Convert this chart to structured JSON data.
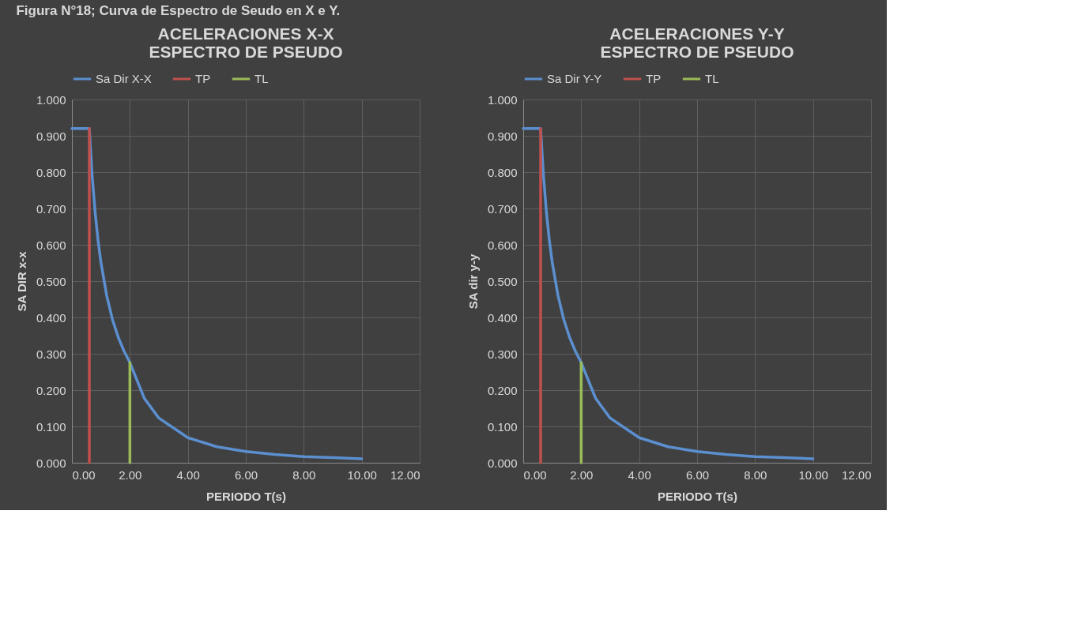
{
  "chart_data": [
    {
      "type": "line",
      "title": "ACELERACIONES X-X\nESPECTRO DE PSEUDO",
      "xlabel": "PERIODO T(s)",
      "ylabel": "SA DIR x-x",
      "annotations": [
        "Figura N°18; Curva de Espectro de Seudo en X e Y."
      ],
      "series": [
        {
          "name": "Sa Dir X-X",
          "color": "#5b8fd0",
          "x": [
            0,
            0.6,
            0.7,
            0.8,
            0.9,
            1.0,
            1.2,
            1.4,
            1.6,
            1.8,
            2.0,
            2.5,
            3.0,
            4.0,
            5.0,
            6.0,
            7.0,
            8.0,
            9.0,
            10.0
          ],
          "values": [
            0.92,
            0.92,
            0.789,
            0.69,
            0.613,
            0.552,
            0.46,
            0.394,
            0.345,
            0.307,
            0.276,
            0.177,
            0.123,
            0.069,
            0.044,
            0.031,
            0.023,
            0.017,
            0.014,
            0.011
          ]
        },
        {
          "name": "TP",
          "color": "#c0504d",
          "x": [
            0.6,
            0.6
          ],
          "values": [
            0,
            0.92
          ]
        },
        {
          "name": "TL",
          "color": "#9bbb59",
          "x": [
            2.0,
            2.0
          ],
          "values": [
            0,
            0.276
          ]
        }
      ],
      "xlim": [
        0,
        12
      ],
      "ylim": [
        0,
        1
      ],
      "xticks": [
        {
          "value": 0,
          "label": "0.00"
        },
        {
          "value": 2,
          "label": "2.00"
        },
        {
          "value": 4,
          "label": "4.00"
        },
        {
          "value": 6,
          "label": "6.00"
        },
        {
          "value": 8,
          "label": "8.00"
        },
        {
          "value": 10,
          "label": "10.00"
        },
        {
          "value": 12,
          "label": "12.00"
        }
      ],
      "yticks": [
        {
          "value": 0,
          "label": "0.000"
        },
        {
          "value": 0.1,
          "label": "0.100"
        },
        {
          "value": 0.2,
          "label": "0.200"
        },
        {
          "value": 0.3,
          "label": "0.300"
        },
        {
          "value": 0.4,
          "label": "0.400"
        },
        {
          "value": 0.5,
          "label": "0.500"
        },
        {
          "value": 0.6,
          "label": "0.600"
        },
        {
          "value": 0.7,
          "label": "0.700"
        },
        {
          "value": 0.8,
          "label": "0.800"
        },
        {
          "value": 0.9,
          "label": "0.900"
        },
        {
          "value": 1,
          "label": "1.000"
        }
      ],
      "grid": true,
      "legend": "top",
      "marker": "none",
      "line_style": "solid"
    },
    {
      "type": "line",
      "title": "ACELERACIONES Y-Y\nESPECTRO DE PSEUDO",
      "xlabel": "PERIODO T(s)",
      "ylabel": "SA dir y-y",
      "series": [
        {
          "name": "Sa Dir Y-Y",
          "color": "#5b8fd0",
          "x": [
            0,
            0.6,
            0.7,
            0.8,
            0.9,
            1.0,
            1.2,
            1.4,
            1.6,
            1.8,
            2.0,
            2.5,
            3.0,
            4.0,
            5.0,
            6.0,
            7.0,
            8.0,
            9.0,
            10.0
          ],
          "values": [
            0.92,
            0.92,
            0.789,
            0.69,
            0.613,
            0.552,
            0.46,
            0.394,
            0.345,
            0.307,
            0.276,
            0.177,
            0.123,
            0.069,
            0.044,
            0.031,
            0.023,
            0.017,
            0.014,
            0.011
          ]
        },
        {
          "name": "TP",
          "color": "#c0504d",
          "x": [
            0.6,
            0.6
          ],
          "values": [
            0,
            0.92
          ]
        },
        {
          "name": "TL",
          "color": "#9bbb59",
          "x": [
            2.0,
            2.0
          ],
          "values": [
            0,
            0.276
          ]
        }
      ],
      "xlim": [
        0,
        12
      ],
      "ylim": [
        0,
        1
      ],
      "xticks": [
        {
          "value": 0,
          "label": "0.00"
        },
        {
          "value": 2,
          "label": "2.00"
        },
        {
          "value": 4,
          "label": "4.00"
        },
        {
          "value": 6,
          "label": "6.00"
        },
        {
          "value": 8,
          "label": "8.00"
        },
        {
          "value": 10,
          "label": "10.00"
        },
        {
          "value": 12,
          "label": "12.00"
        }
      ],
      "yticks": [
        {
          "value": 0,
          "label": "0.000"
        },
        {
          "value": 0.1,
          "label": "0.100"
        },
        {
          "value": 0.2,
          "label": "0.200"
        },
        {
          "value": 0.3,
          "label": "0.300"
        },
        {
          "value": 0.4,
          "label": "0.400"
        },
        {
          "value": 0.5,
          "label": "0.500"
        },
        {
          "value": 0.6,
          "label": "0.600"
        },
        {
          "value": 0.7,
          "label": "0.700"
        },
        {
          "value": 0.8,
          "label": "0.800"
        },
        {
          "value": 0.9,
          "label": "0.900"
        },
        {
          "value": 1,
          "label": "1.000"
        }
      ],
      "grid": true,
      "legend": "top",
      "marker": "none",
      "line_style": "solid"
    }
  ]
}
